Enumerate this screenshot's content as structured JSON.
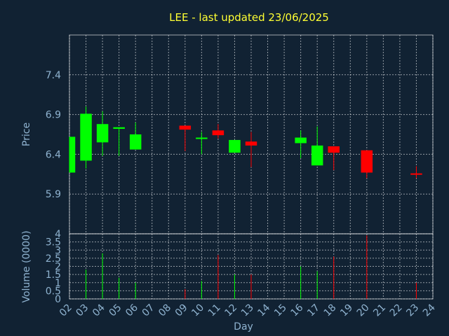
{
  "title": "LEE - last updated 23/06/2025",
  "chart_data": {
    "type": "candlestick",
    "title": "LEE - last updated 23/06/2025",
    "xlabel": "Day",
    "ylabel_price": "Price",
    "ylabel_volume": "Volume (0000)",
    "days": [
      "02",
      "03",
      "04",
      "05",
      "06",
      "07",
      "08",
      "09",
      "10",
      "11",
      "12",
      "13",
      "14",
      "15",
      "16",
      "17",
      "18",
      "19",
      "20",
      "21",
      "22",
      "23",
      "24"
    ],
    "price_ticks": [
      5.9,
      6.4,
      6.9,
      7.4
    ],
    "price_ylim": [
      5.4,
      7.9
    ],
    "volume_ticks": [
      0,
      0.5,
      1,
      1.5,
      2,
      2.5,
      3,
      3.5,
      4
    ],
    "volume_tick_labels": [
      "0",
      "0.5",
      "1",
      "1.5",
      "2",
      "2.5",
      "3",
      "3.5",
      "4"
    ],
    "volume_ylim": [
      0,
      4
    ],
    "up_color": "#00ff00",
    "down_color": "#ff0000",
    "candles": [
      {
        "day": "02",
        "open": 6.17,
        "close": 6.62,
        "high": 6.62,
        "low": 6.17,
        "volume": 0.0
      },
      {
        "day": "03",
        "open": 6.32,
        "close": 6.91,
        "high": 7.0,
        "low": 6.22,
        "volume": 1.8
      },
      {
        "day": "04",
        "open": 6.55,
        "close": 6.78,
        "high": 6.94,
        "low": 6.38,
        "volume": 2.8
      },
      {
        "day": "05",
        "open": 6.72,
        "close": 6.74,
        "high": 6.74,
        "low": 6.38,
        "volume": 1.3
      },
      {
        "day": "06",
        "open": 6.46,
        "close": 6.65,
        "high": 6.8,
        "low": 6.46,
        "volume": 1.0
      },
      {
        "day": "09",
        "open": 6.76,
        "close": 6.71,
        "high": 6.76,
        "low": 6.44,
        "volume": 0.6
      },
      {
        "day": "10",
        "open": 6.6,
        "close": 6.61,
        "high": 6.68,
        "low": 6.4,
        "volume": 1.1
      },
      {
        "day": "11",
        "open": 6.7,
        "close": 6.64,
        "high": 6.78,
        "low": 6.6,
        "volume": 2.7
      },
      {
        "day": "12",
        "open": 6.42,
        "close": 6.58,
        "high": 6.58,
        "low": 6.42,
        "volume": 1.5
      },
      {
        "day": "13",
        "open": 6.56,
        "close": 6.51,
        "high": 6.68,
        "low": 6.24,
        "volume": 1.5
      },
      {
        "day": "16",
        "open": 6.54,
        "close": 6.61,
        "high": 6.7,
        "low": 6.35,
        "volume": 2.0
      },
      {
        "day": "17",
        "open": 6.26,
        "close": 6.51,
        "high": 6.75,
        "low": 6.26,
        "volume": 1.7
      },
      {
        "day": "18",
        "open": 6.5,
        "close": 6.42,
        "high": 6.5,
        "low": 6.2,
        "volume": 2.6
      },
      {
        "day": "20",
        "open": 6.45,
        "close": 6.17,
        "high": 6.45,
        "low": 6.1,
        "volume": 3.9
      },
      {
        "day": "23",
        "open": 6.16,
        "close": 6.15,
        "high": 6.25,
        "low": 6.1,
        "volume": 1.0
      }
    ]
  }
}
